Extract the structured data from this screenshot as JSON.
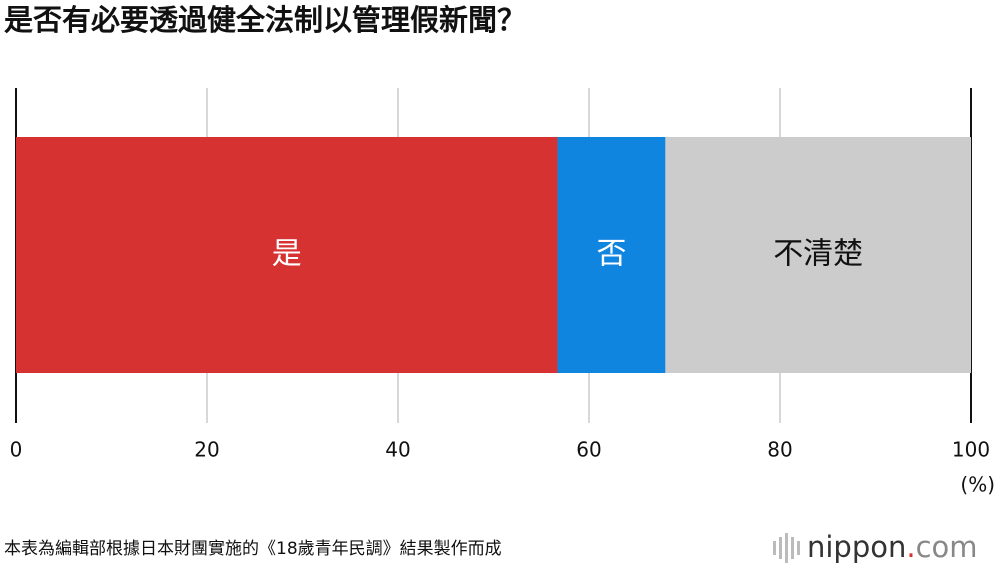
{
  "chart_data": {
    "type": "stacked-bar",
    "title": "是否有必要透過健全法制以管理假新聞？",
    "categories": [
      null
    ],
    "series": [
      {
        "name": "是",
        "color": "#d63232",
        "values": [
          56.7
        ]
      },
      {
        "name": "否",
        "color": "#1085e0",
        "values": [
          11.3
        ]
      },
      {
        "name": "不清楚",
        "color": "#cccccc",
        "values": [
          32.0
        ]
      }
    ],
    "xlim": [
      0,
      100
    ],
    "xticks": [
      0,
      20,
      40,
      60,
      80,
      100
    ],
    "x_unit": "(%)",
    "grid": true,
    "note": "本表為編輯部根據日本財團實施的《18歲青年民調》結果製作而成",
    "logo": {
      "name": "nippon",
      "dot": ".",
      "suffix": "com"
    }
  }
}
